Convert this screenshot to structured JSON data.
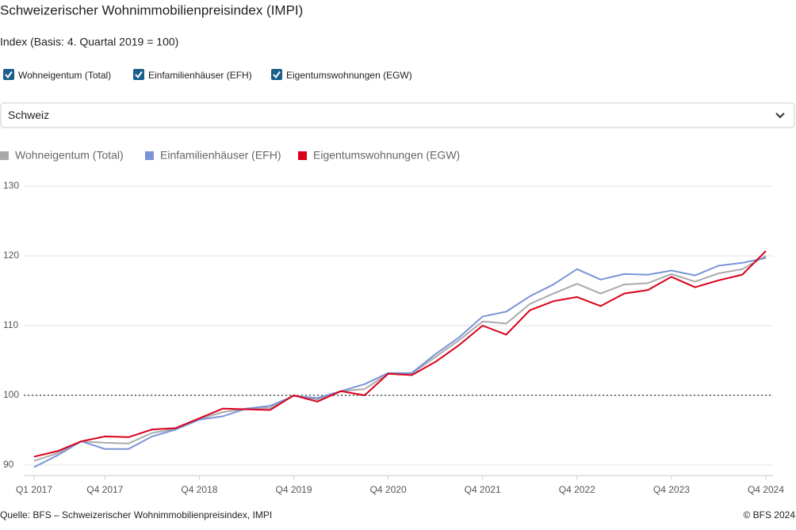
{
  "chart_data": {
    "type": "line",
    "title": "Schweizerischer Wohnimmobilienpreisindex (IMPI)",
    "subtitle": "Index (Basis: 4. Quartal 2019 = 100)",
    "dropdown": "Schweiz",
    "source": "Quelle: BFS – Schweizerischer Wohnimmobilienpreisindex, IMPI",
    "copyright": "© BFS 2024",
    "categories": [
      "Q1 2017",
      null,
      null,
      "Q4 2017",
      null,
      null,
      null,
      "Q4 2018",
      null,
      null,
      null,
      "Q4 2019",
      null,
      null,
      null,
      "Q4 2020",
      null,
      null,
      null,
      "Q4 2021",
      null,
      null,
      null,
      "Q4 2022",
      null,
      null,
      null,
      "Q4 2023",
      null,
      null,
      null,
      "Q4 2024"
    ],
    "series": [
      {
        "name": "Wohneigentum (Total)",
        "color": "#aaaaaa",
        "values": [
          90.6,
          91.7,
          93.4,
          93.2,
          93.1,
          94.6,
          95.2,
          96.6,
          97.6,
          98.1,
          98.2,
          100.0,
          99.4,
          100.6,
          100.9,
          103.1,
          103.1,
          105.5,
          107.9,
          110.6,
          110.3,
          113.1,
          114.6,
          116.0,
          114.6,
          115.9,
          116.1,
          117.4,
          116.3,
          117.5,
          118.1,
          120.0
        ]
      },
      {
        "name": "Einfamilienhäuser (EFH)",
        "color": "#7a94d6",
        "values": [
          89.7,
          91.4,
          93.4,
          92.3,
          92.3,
          94.1,
          95.1,
          96.5,
          97.0,
          98.1,
          98.5,
          99.9,
          99.6,
          100.6,
          101.6,
          103.2,
          103.2,
          105.9,
          108.3,
          111.3,
          112.0,
          114.2,
          115.9,
          118.1,
          116.6,
          117.4,
          117.3,
          117.9,
          117.2,
          118.6,
          119.0,
          119.7
        ]
      },
      {
        "name": "Eigentumswohnungen (EGW)",
        "color": "#d9001b",
        "values": [
          91.2,
          92.0,
          93.4,
          94.1,
          94.0,
          95.1,
          95.3,
          96.7,
          98.1,
          98.0,
          97.9,
          100.0,
          99.1,
          100.6,
          100.0,
          103.1,
          102.9,
          104.8,
          107.2,
          110.0,
          108.7,
          112.2,
          113.5,
          114.1,
          112.8,
          114.6,
          115.1,
          117.0,
          115.5,
          116.5,
          117.3,
          120.7
        ]
      }
    ],
    "reference_line": 100,
    "ylim": [
      88.5,
      130
    ],
    "yticks": [
      90,
      100,
      110,
      120,
      130
    ],
    "grid": true
  }
}
